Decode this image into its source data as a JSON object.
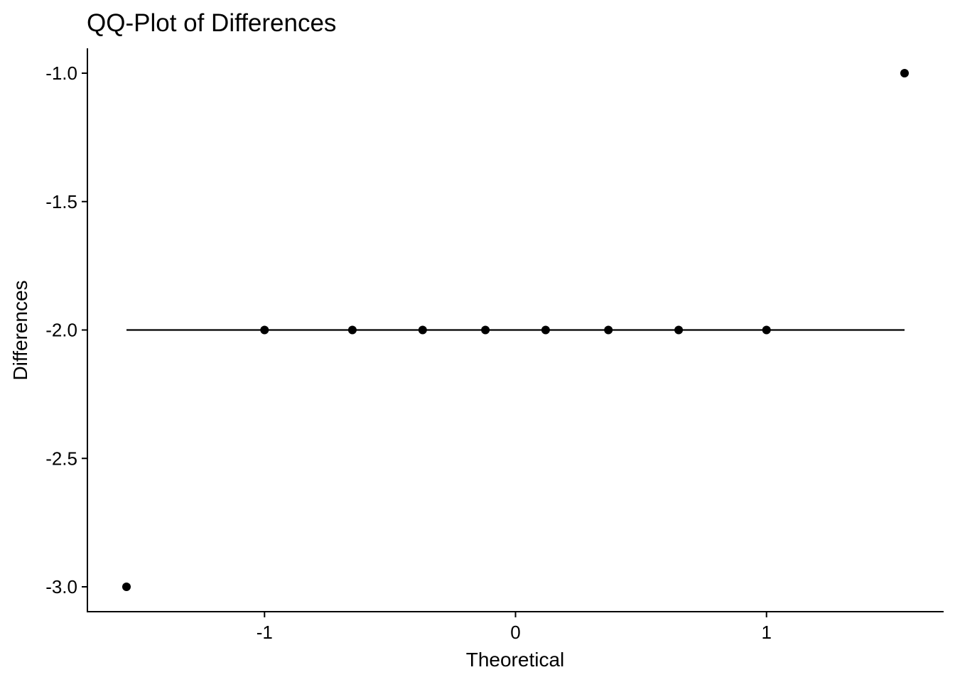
{
  "chart_data": {
    "type": "scatter",
    "title": "QQ-Plot of Differences",
    "xlabel": "Theoretical",
    "ylabel": "Differences",
    "xlim": [
      -1.55,
      1.55
    ],
    "ylim": [
      -3.0,
      -1.0
    ],
    "x_ticks": [
      {
        "value": -1,
        "label": "-1"
      },
      {
        "value": 0,
        "label": "0"
      },
      {
        "value": 1,
        "label": "1"
      }
    ],
    "y_ticks": [
      {
        "value": -1.0,
        "label": "-1.0"
      },
      {
        "value": -1.5,
        "label": "-1.5"
      },
      {
        "value": -2.0,
        "label": "-2.0"
      },
      {
        "value": -2.5,
        "label": "-2.5"
      },
      {
        "value": -3.0,
        "label": "-3.0"
      }
    ],
    "grid": false,
    "points": [
      {
        "x": -1.55,
        "y": -3.0
      },
      {
        "x": -1.0,
        "y": -2.0
      },
      {
        "x": -0.65,
        "y": -2.0
      },
      {
        "x": -0.37,
        "y": -2.0
      },
      {
        "x": -0.12,
        "y": -2.0
      },
      {
        "x": 0.12,
        "y": -2.0
      },
      {
        "x": 0.37,
        "y": -2.0
      },
      {
        "x": 0.65,
        "y": -2.0
      },
      {
        "x": 1.0,
        "y": -2.0
      },
      {
        "x": 1.55,
        "y": -1.0
      }
    ],
    "reference_line": {
      "x": [
        -1.55,
        1.55
      ],
      "y": [
        -2.0,
        -2.0
      ]
    },
    "colors": {
      "points": "#000000",
      "line": "#000000",
      "axis": "#000000"
    }
  }
}
